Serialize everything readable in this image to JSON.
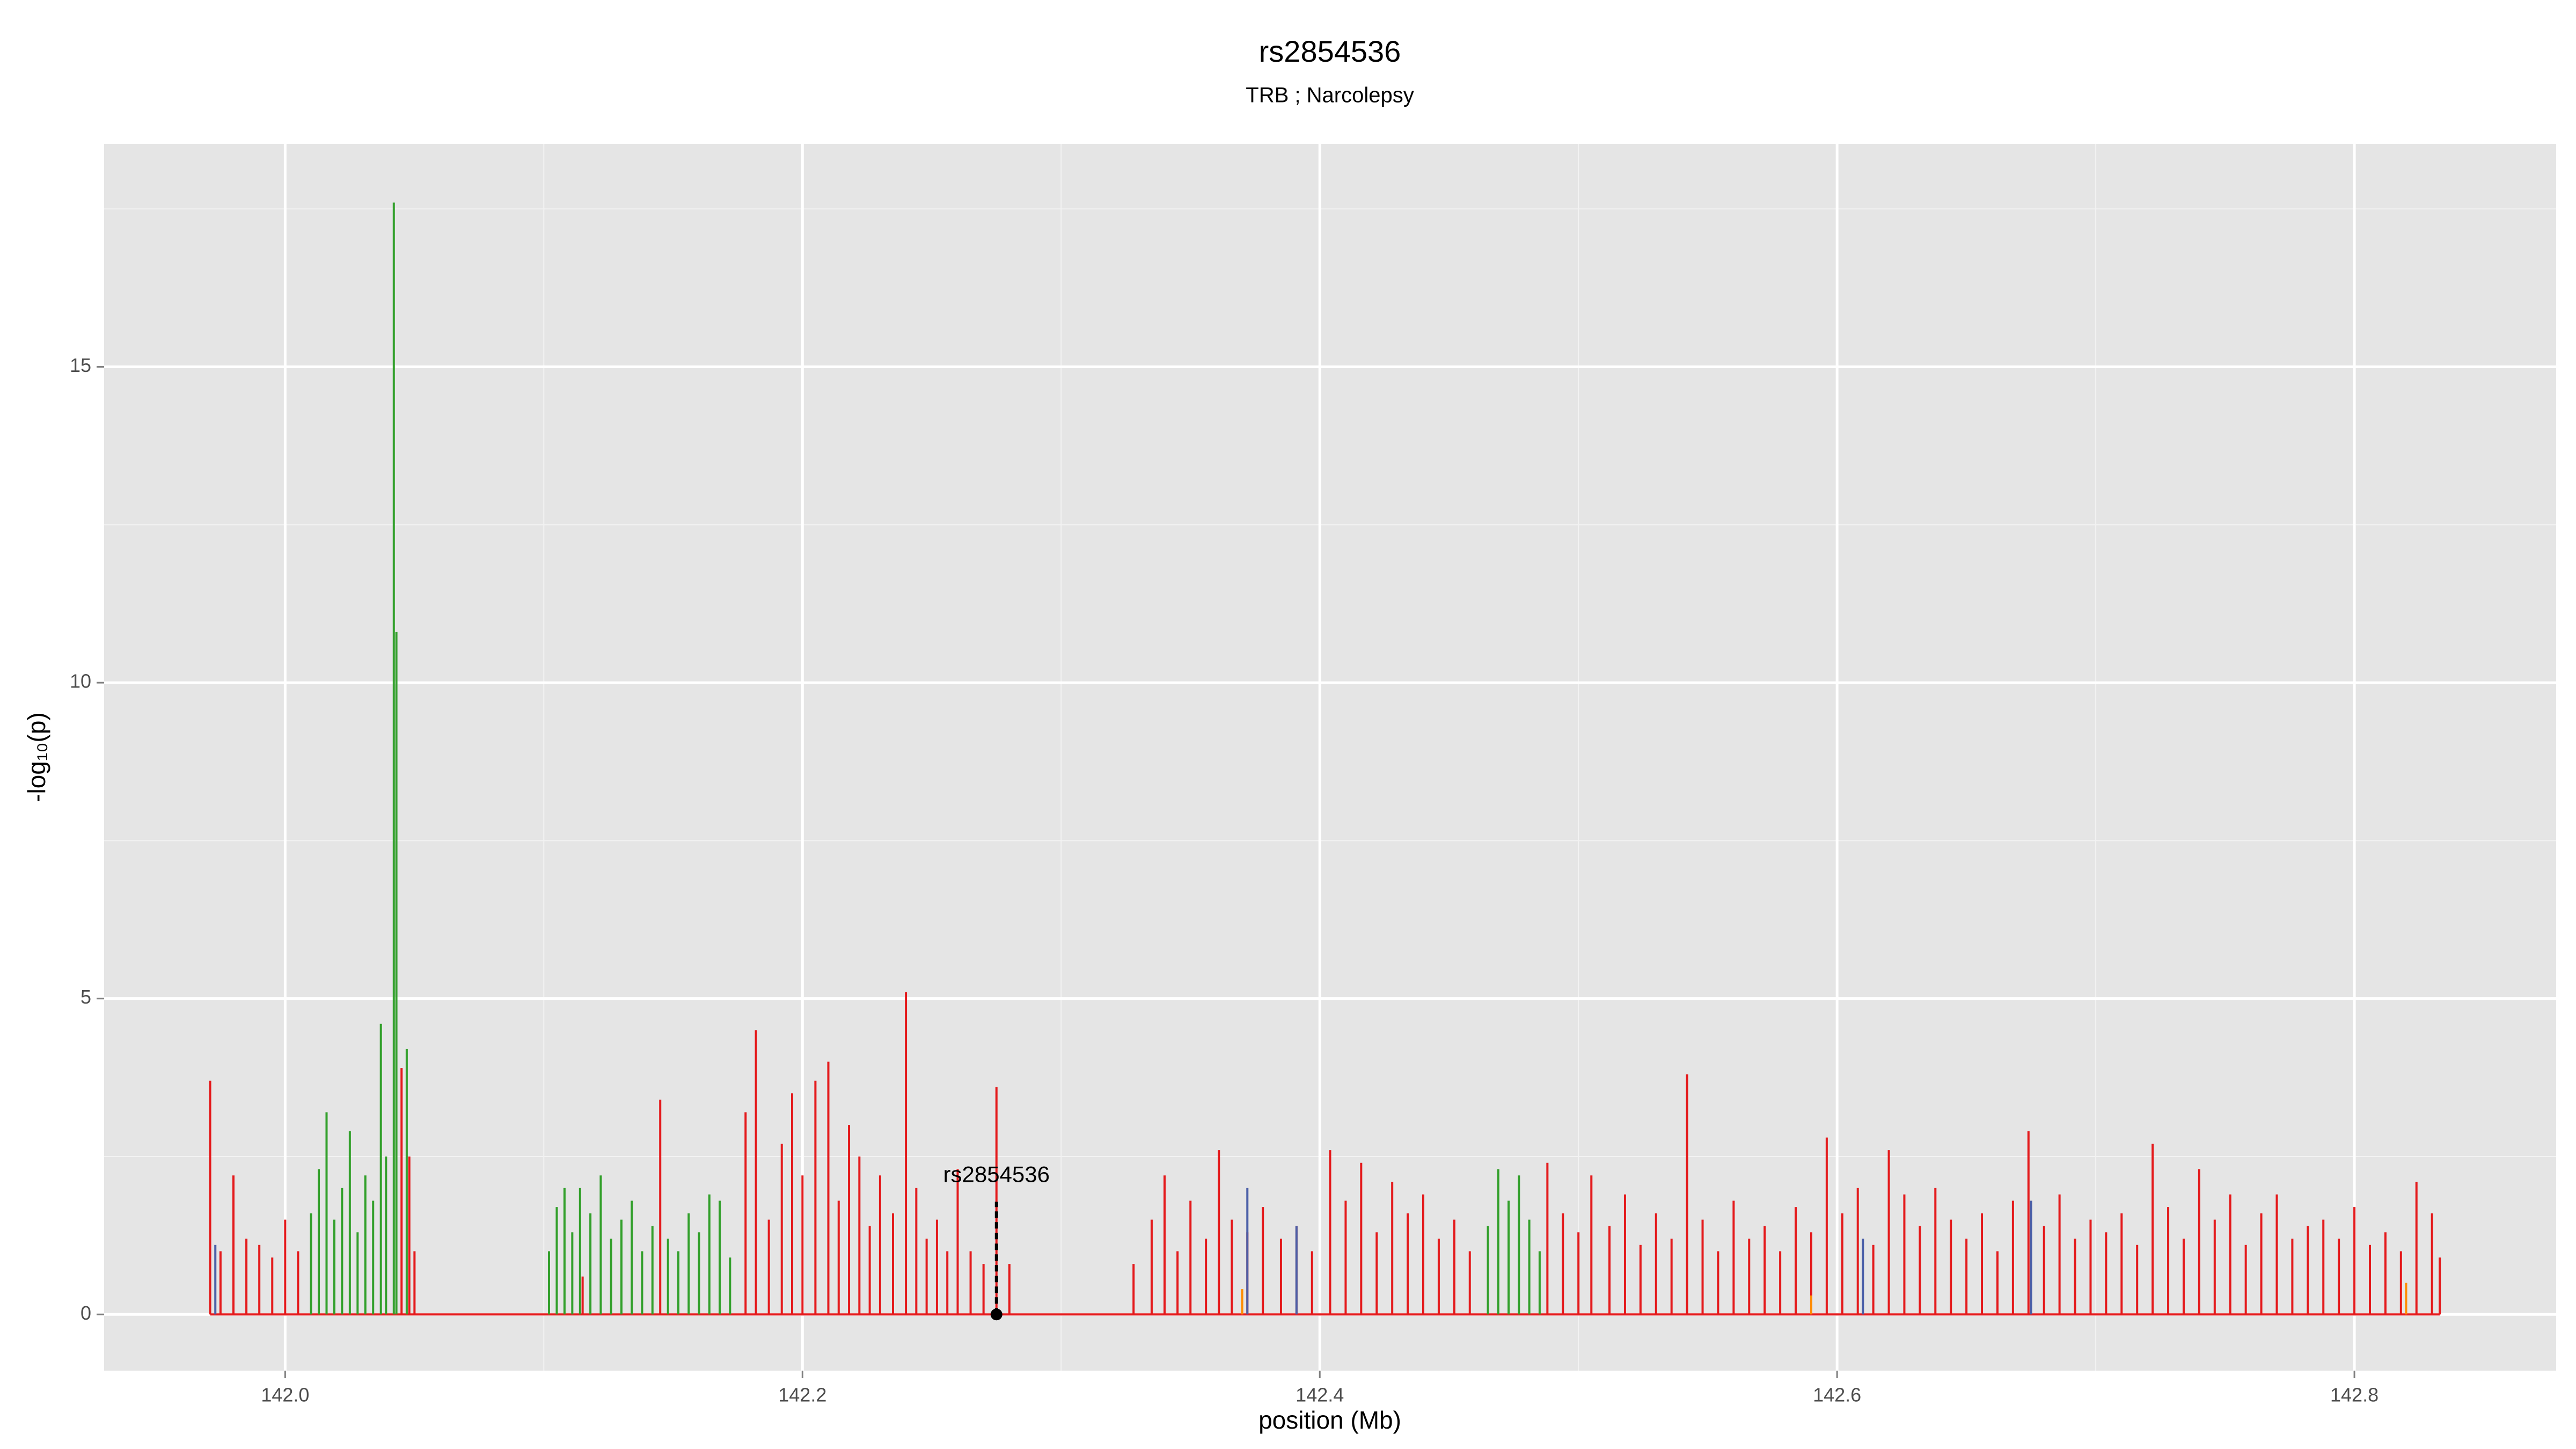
{
  "chart_data": {
    "type": "spike",
    "title": "rs2854536",
    "subtitle": "TRB ; Narcolepsy",
    "x_label": "position (Mb)",
    "y_label": "-log₁₀(p)",
    "xlim": [
      141.93,
      142.878
    ],
    "ylim": [
      -0.89,
      18.53
    ],
    "xticks": [
      {
        "value": 142.0,
        "label": "142.0"
      },
      {
        "value": 142.2,
        "label": "142.2"
      },
      {
        "value": 142.4,
        "label": "142.4"
      },
      {
        "value": 142.6,
        "label": "142.6"
      },
      {
        "value": 142.8,
        "label": "142.8"
      }
    ],
    "yticks": [
      0,
      5,
      10,
      15
    ],
    "grid": true,
    "series": [
      {
        "color": "#e41a1c",
        "x": [
          141.971,
          141.975,
          141.98,
          141.985,
          141.99,
          141.995,
          142.0,
          142.005,
          142.045,
          142.048,
          142.05,
          142.115,
          142.145,
          142.178,
          142.182,
          142.187,
          142.192,
          142.196,
          142.2,
          142.205,
          142.21,
          142.214,
          142.218,
          142.222,
          142.226,
          142.23,
          142.235,
          142.24,
          142.244,
          142.248,
          142.252,
          142.256,
          142.26,
          142.265,
          142.27,
          142.275,
          142.28,
          142.328,
          142.335,
          142.34,
          142.345,
          142.35,
          142.356,
          142.361,
          142.366,
          142.372,
          142.378,
          142.385,
          142.391,
          142.397,
          142.404,
          142.41,
          142.416,
          142.422,
          142.428,
          142.434,
          142.44,
          142.446,
          142.452,
          142.458,
          142.488,
          142.494,
          142.5,
          142.505,
          142.512,
          142.518,
          142.524,
          142.53,
          142.536,
          142.542,
          142.548,
          142.554,
          142.56,
          142.566,
          142.572,
          142.578,
          142.584,
          142.59,
          142.596,
          142.602,
          142.608,
          142.614,
          142.62,
          142.626,
          142.632,
          142.638,
          142.644,
          142.65,
          142.656,
          142.662,
          142.668,
          142.674,
          142.68,
          142.686,
          142.692,
          142.698,
          142.704,
          142.71,
          142.716,
          142.722,
          142.728,
          142.734,
          142.74,
          142.746,
          142.752,
          142.758,
          142.764,
          142.77,
          142.776,
          142.782,
          142.788,
          142.794,
          142.8,
          142.806,
          142.812,
          142.818,
          142.824,
          142.83,
          142.833
        ],
        "values": [
          3.7,
          1.0,
          2.2,
          1.2,
          1.1,
          0.9,
          1.5,
          1.0,
          3.9,
          2.5,
          1.0,
          0.6,
          3.4,
          3.2,
          4.5,
          1.5,
          2.7,
          3.5,
          2.2,
          3.7,
          4.0,
          1.8,
          3.0,
          2.5,
          1.4,
          2.2,
          1.6,
          5.1,
          2.0,
          1.2,
          1.5,
          1.0,
          2.3,
          1.0,
          0.8,
          3.6,
          0.8,
          0.8,
          1.5,
          2.2,
          1.0,
          1.8,
          1.2,
          2.6,
          1.5,
          1.3,
          1.7,
          1.2,
          1.4,
          1.0,
          2.6,
          1.8,
          2.4,
          1.3,
          2.1,
          1.6,
          1.9,
          1.2,
          1.5,
          1.0,
          2.4,
          1.6,
          1.3,
          2.2,
          1.4,
          1.9,
          1.1,
          1.6,
          1.2,
          3.8,
          1.5,
          1.0,
          1.8,
          1.2,
          1.4,
          1.0,
          1.7,
          1.3,
          2.8,
          1.6,
          2.0,
          1.1,
          2.6,
          1.9,
          1.4,
          2.0,
          1.5,
          1.2,
          1.6,
          1.0,
          1.8,
          2.9,
          1.4,
          1.9,
          1.2,
          1.5,
          1.3,
          1.6,
          1.1,
          2.7,
          1.7,
          1.2,
          2.3,
          1.5,
          1.9,
          1.1,
          1.6,
          1.9,
          1.2,
          1.4,
          1.5,
          1.2,
          1.7,
          1.1,
          1.3,
          1.0,
          2.1,
          1.6,
          0.9
        ]
      },
      {
        "color": "#33a02c",
        "x": [
          142.01,
          142.013,
          142.016,
          142.019,
          142.022,
          142.025,
          142.028,
          142.031,
          142.034,
          142.037,
          142.039,
          142.042,
          142.043,
          142.047,
          142.102,
          142.105,
          142.108,
          142.111,
          142.114,
          142.118,
          142.122,
          142.126,
          142.13,
          142.134,
          142.138,
          142.142,
          142.148,
          142.152,
          142.156,
          142.16,
          142.164,
          142.168,
          142.172,
          142.465,
          142.469,
          142.473,
          142.477,
          142.481,
          142.485
        ],
        "values": [
          1.6,
          2.3,
          3.2,
          1.5,
          2.0,
          2.9,
          1.3,
          2.2,
          1.8,
          4.6,
          2.5,
          17.6,
          10.8,
          4.2,
          1.0,
          1.7,
          2.0,
          1.3,
          2.0,
          1.6,
          2.2,
          1.2,
          1.5,
          1.8,
          1.0,
          1.4,
          1.2,
          1.0,
          1.6,
          1.3,
          1.9,
          1.8,
          0.9,
          1.4,
          2.3,
          1.8,
          2.2,
          1.5,
          1.0
        ]
      },
      {
        "color": "#4a5fa8",
        "x": [
          141.973,
          142.372,
          142.391,
          142.61,
          142.675
        ],
        "values": [
          1.1,
          2.0,
          1.4,
          1.2,
          1.8
        ]
      },
      {
        "color": "#ff8c00",
        "x": [
          142.37,
          142.59,
          142.82
        ],
        "values": [
          0.4,
          0.3,
          0.5
        ]
      }
    ],
    "annotation": {
      "label": "rs2854536",
      "x": 142.275,
      "y": 0
    }
  }
}
